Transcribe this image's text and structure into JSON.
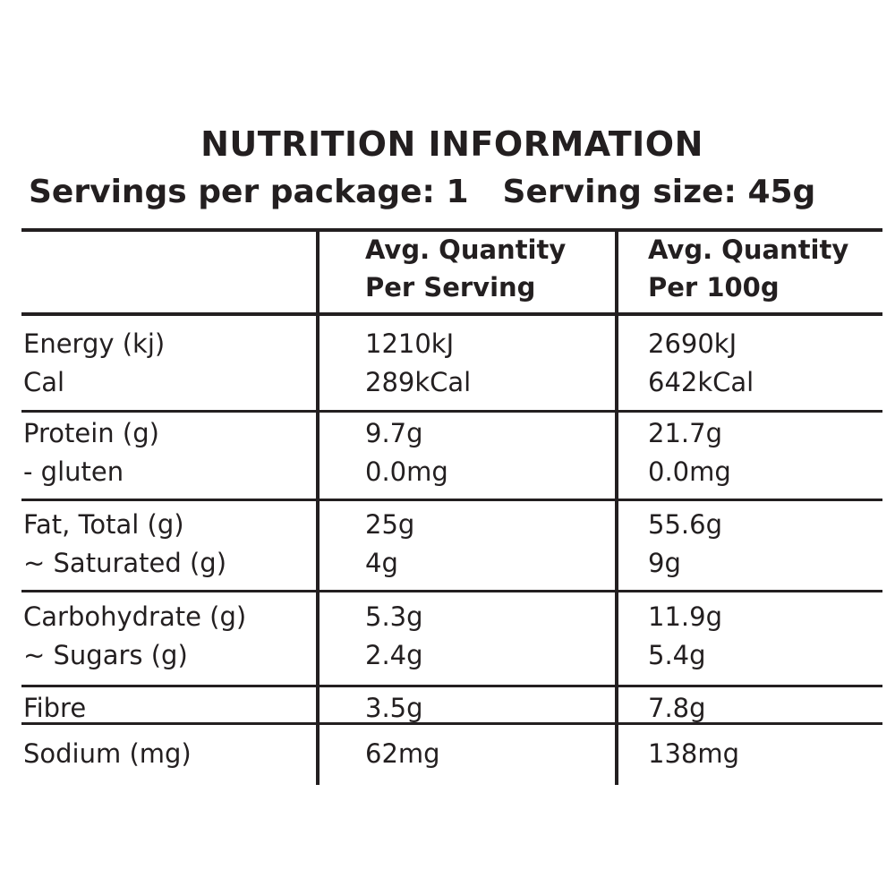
{
  "title": "NUTRITION INFORMATION",
  "servings_per_package": "Servings per package: 1",
  "serving_size": "Serving size: 45g",
  "columns": {
    "per_serving_line1": "Avg. Quantity",
    "per_serving_line2": "Per Serving",
    "per_100g_line1": "Avg. Quantity",
    "per_100g_line2": "Per 100g"
  },
  "rows": [
    {
      "name": "Energy (kj)",
      "serving": "1210kJ",
      "per100": "2690kJ"
    },
    {
      "name": "Cal",
      "serving": "289kCal",
      "per100": "642kCal"
    },
    {
      "name": "Protein (g)",
      "serving": "9.7g",
      "per100": "21.7g"
    },
    {
      "name": "- gluten",
      "serving": "0.0mg",
      "per100": "0.0mg"
    },
    {
      "name": "Fat, Total (g)",
      "serving": "25g",
      "per100": "55.6g"
    },
    {
      "name": "~ Saturated (g)",
      "serving": "4g",
      "per100": "9g"
    },
    {
      "name": "Carbohydrate (g)",
      "serving": "5.3g",
      "per100": "11.9g"
    },
    {
      "name": "~ Sugars (g)",
      "serving": "2.4g",
      "per100": "5.4g"
    },
    {
      "name": "Fibre",
      "serving": "3.5g",
      "per100": "7.8g"
    },
    {
      "name": "Sodium (mg)",
      "serving": "62mg",
      "per100": "138mg"
    }
  ]
}
